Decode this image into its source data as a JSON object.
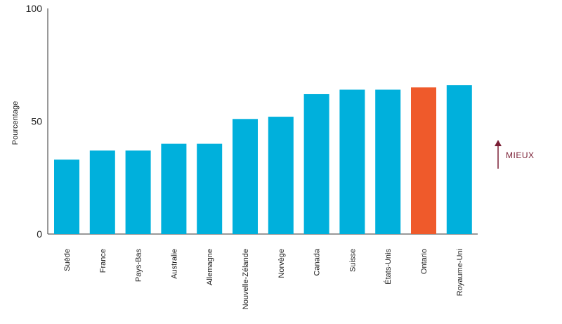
{
  "chart_data": {
    "type": "bar",
    "ylabel": "Pourcentage",
    "ylim": [
      0,
      100
    ],
    "yticks": [
      "0",
      "50",
      "100"
    ],
    "categories": [
      "Suède",
      "France",
      "Pays-Bas",
      "Australie",
      "Allemagne",
      "Nouvelle-Zélande",
      "Norvège",
      "Canada",
      "Suisse",
      "États-Unis",
      "Ontario",
      "Royaume-Uni"
    ],
    "values": [
      33,
      37,
      37,
      40,
      40,
      51,
      52,
      62,
      64,
      64,
      65,
      66
    ],
    "highlight_category": "Ontario",
    "bar_color": "#00b0dc",
    "highlight_color": "#ef5a2b",
    "grid": false,
    "annotation": {
      "label": "MIEUX",
      "color": "#7a1f35"
    }
  }
}
